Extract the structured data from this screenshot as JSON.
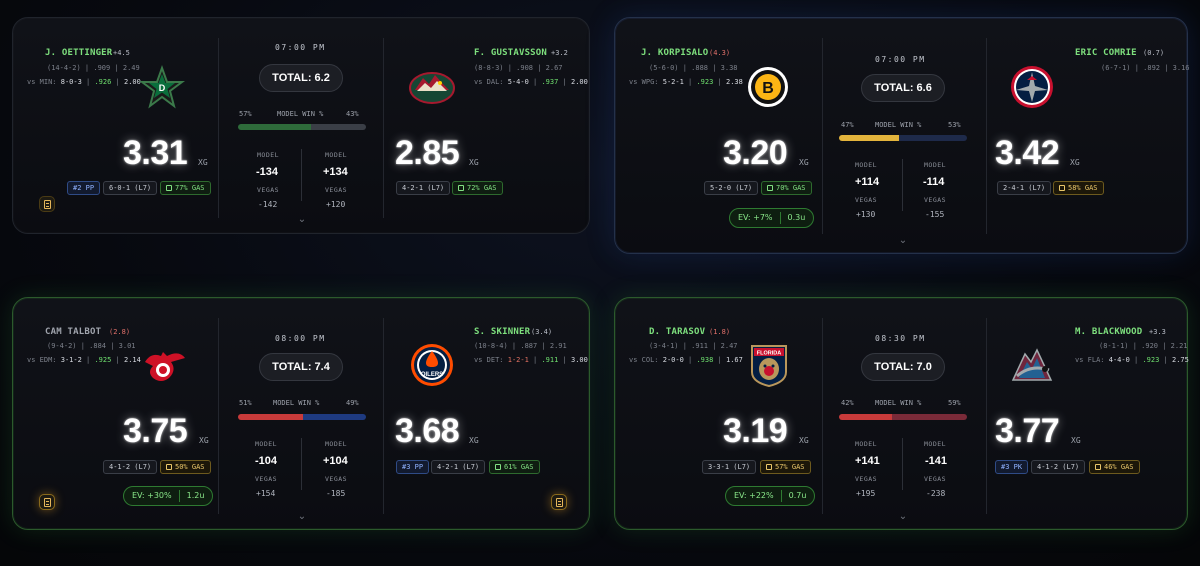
{
  "games": [
    {
      "time": "07:00 PM",
      "total": "TOTAL: 6.2",
      "model_win_label": "MODEL WIN %",
      "away": {
        "goalie": "J. OETTINGER",
        "change": "+4.5",
        "record_line": "(14-4-2) | .909 | 2.49",
        "vs_team": "vs MIN:",
        "vs_record": "8-0-3",
        "vs_sv": ".926",
        "vs_gaa": "2.00",
        "logo": "stars-logo",
        "xg": "3.31",
        "xg_unit": "XG",
        "pills": [
          "#2 PP",
          "6-0-1 (L7)",
          "77% GAS"
        ],
        "win_pct": "57%",
        "model": "-134",
        "vegas": "-142",
        "bar_color": "#2e6b3a"
      },
      "home": {
        "goalie": "F. GUSTAVSSON",
        "change": "+3.2",
        "record_line": "(8-8-3) | .908 | 2.67",
        "vs_team": "vs DAL:",
        "vs_record": "5-4-0",
        "vs_sv": ".937",
        "vs_gaa": "2.00",
        "logo": "wild-logo",
        "xg": "2.85",
        "xg_unit": "XG",
        "pills": [
          "4-2-1 (L7)",
          "72% GAS"
        ],
        "win_pct": "43%",
        "model": "+134",
        "vegas": "+120",
        "bar_color": "#3a3e46"
      },
      "labels": {
        "model": "MODEL",
        "vegas": "VEGAS"
      }
    },
    {
      "time": "07:00 PM",
      "total": "TOTAL: 6.6",
      "model_win_label": "MODEL WIN %",
      "away": {
        "goalie": "J. KORPISALO",
        "change": "(4.3)",
        "record_line": "(5-6-0) | .888 | 3.38",
        "vs_team": "vs WPG:",
        "vs_record": "5-2-1",
        "vs_sv": ".923",
        "vs_gaa": "2.38",
        "logo": "bruins-logo",
        "xg": "3.20",
        "xg_unit": "XG",
        "pills": [
          "5-2-0 (L7)",
          "70% GAS"
        ],
        "ev": "EV: +7%",
        "units": "0.3u",
        "win_pct": "47%",
        "model": "+114",
        "vegas": "+130",
        "bar_color": "#e3b43c"
      },
      "home": {
        "goalie": "ERIC COMRIE",
        "change": "(0.7)",
        "record_line": "(6-7-1) | .892 | 3.16",
        "logo": "jets-logo",
        "xg": "3.42",
        "xg_unit": "XG",
        "pills": [
          "2-4-1 (L7)",
          "58% GAS"
        ],
        "win_pct": "53%",
        "model": "-114",
        "vegas": "-155",
        "bar_color": "#1e2a4a"
      },
      "labels": {
        "model": "MODEL",
        "vegas": "VEGAS"
      }
    },
    {
      "time": "08:00 PM",
      "total": "TOTAL: 7.4",
      "model_win_label": "MODEL WIN %",
      "away": {
        "goalie": "CAM TALBOT",
        "change": "(2.8)",
        "record_line": "(9-4-2) | .884 | 3.01",
        "vs_team": "vs EDM:",
        "vs_record": "3-1-2",
        "vs_sv": ".925",
        "vs_gaa": "2.14",
        "logo": "red-wings-logo",
        "xg": "3.75",
        "xg_unit": "XG",
        "pills": [
          "4-1-2 (L7)",
          "50% GAS"
        ],
        "ev": "EV: +30%",
        "units": "1.2u",
        "win_pct": "51%",
        "model": "-104",
        "vegas": "+154",
        "bar_color": "#c83a3a"
      },
      "home": {
        "goalie": "S. SKINNER",
        "change": "(3.4)",
        "record_line": "(10-8-4) | .887 | 2.91",
        "vs_team": "vs DET:",
        "vs_record": "1-2-1",
        "vs_sv": ".911",
        "vs_gaa": "3.00",
        "logo": "oilers-logo",
        "xg": "3.68",
        "xg_unit": "XG",
        "pills": [
          "#3 PP",
          "4-2-1 (L7)",
          "61% GAS"
        ],
        "win_pct": "49%",
        "model": "+104",
        "vegas": "-185",
        "bar_color": "#1e3a80"
      },
      "labels": {
        "model": "MODEL",
        "vegas": "VEGAS"
      }
    },
    {
      "time": "08:30 PM",
      "total": "TOTAL: 7.0",
      "model_win_label": "MODEL WIN %",
      "away": {
        "goalie": "D. TARASOV",
        "change": "(1.8)",
        "record_line": "(3-4-1) | .911 | 2.47",
        "vs_team": "vs COL:",
        "vs_record": "2-0-0",
        "vs_sv": ".938",
        "vs_gaa": "1.67",
        "logo": "panthers-logo",
        "xg": "3.19",
        "xg_unit": "XG",
        "pills": [
          "3-3-1 (L7)",
          "57% GAS"
        ],
        "ev": "EV: +22%",
        "units": "0.7u",
        "win_pct": "42%",
        "model": "+141",
        "vegas": "+195",
        "bar_color": "#c83a3a"
      },
      "home": {
        "goalie": "M. BLACKWOOD",
        "change": "+3.3",
        "record_line": "(8-1-1) | .920 | 2.21",
        "vs_team": "vs FLA:",
        "vs_record": "4-4-0",
        "vs_sv": ".923",
        "vs_gaa": "2.75",
        "logo": "avalanche-logo",
        "xg": "3.77",
        "xg_unit": "XG",
        "pills": [
          "#3 PK",
          "4-1-2 (L7)",
          "46% GAS"
        ],
        "win_pct": "59%",
        "model": "-141",
        "vegas": "-238",
        "bar_color": "#7a2a38"
      },
      "labels": {
        "model": "MODEL",
        "vegas": "VEGAS"
      }
    }
  ]
}
